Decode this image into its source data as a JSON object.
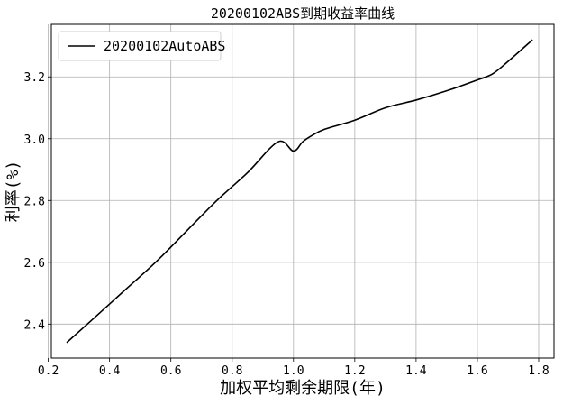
{
  "chart_data": {
    "type": "line",
    "title": "20200102ABS到期收益率曲线",
    "xlabel": "加权平均剩余期限(年)",
    "ylabel": "利率(%)",
    "xlim": [
      0.21,
      1.85
    ],
    "ylim": [
      2.29,
      3.37
    ],
    "xticks": [
      0.2,
      0.4,
      0.6,
      0.8,
      1.0,
      1.2,
      1.4,
      1.6,
      1.8
    ],
    "yticks": [
      2.4,
      2.6,
      2.8,
      3.0,
      3.2
    ],
    "xtick_labels": [
      "0.2",
      "0.4",
      "0.6",
      "0.8",
      "1.0",
      "1.2",
      "1.4",
      "1.6",
      "1.8"
    ],
    "ytick_labels": [
      "2.4",
      "2.6",
      "2.8",
      "3.0",
      "3.2"
    ],
    "grid": true,
    "legend_position": "top-left",
    "series": [
      {
        "name": "20200102AutoABS",
        "color": "#000000",
        "x": [
          0.26,
          0.35,
          0.45,
          0.55,
          0.65,
          0.75,
          0.85,
          0.95,
          1.0,
          1.03,
          1.06,
          1.1,
          1.2,
          1.3,
          1.4,
          1.5,
          1.6,
          1.65,
          1.7,
          1.78
        ],
        "y": [
          2.34,
          2.42,
          2.51,
          2.6,
          2.7,
          2.8,
          2.89,
          2.99,
          2.96,
          2.99,
          3.01,
          3.03,
          3.06,
          3.1,
          3.125,
          3.155,
          3.19,
          3.21,
          3.25,
          3.32
        ]
      }
    ]
  }
}
